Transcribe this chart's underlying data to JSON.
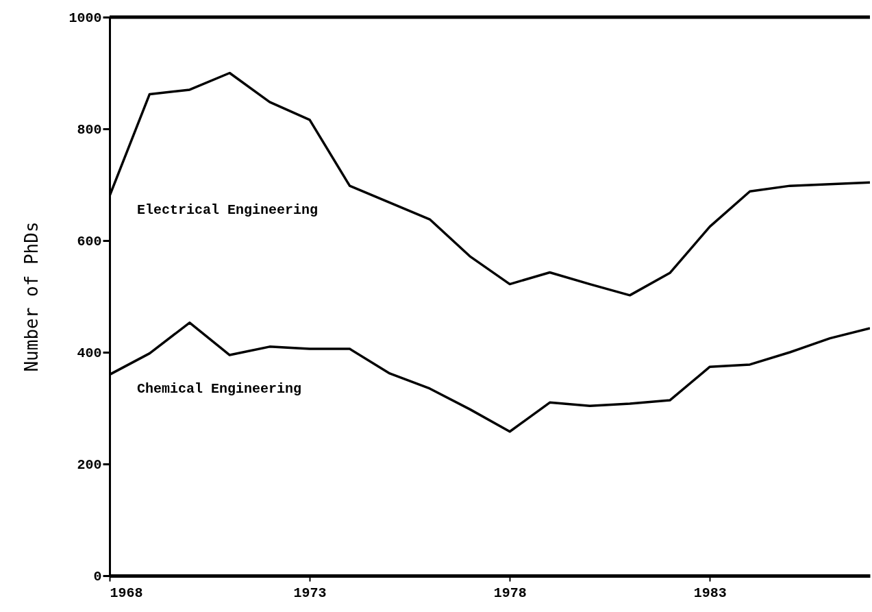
{
  "chart_data": {
    "type": "line",
    "ylabel": "Number of PhDs",
    "x": [
      1968,
      1969,
      1970,
      1971,
      1972,
      1973,
      1974,
      1975,
      1976,
      1977,
      1978,
      1979,
      1980,
      1981,
      1982,
      1983,
      1984,
      1985,
      1986,
      1987
    ],
    "series": [
      {
        "name": "Electrical Engineering",
        "color": "#000000",
        "values": [
          680,
          862,
          870,
          900,
          848,
          816,
          698,
          668,
          638,
          572,
          522,
          543,
          522,
          502,
          542,
          625,
          688,
          698,
          701,
          704
        ]
      },
      {
        "name": "Chemical Engineering",
        "color": "#000000",
        "values": [
          360,
          398,
          453,
          395,
          410,
          406,
          406,
          362,
          335,
          298,
          258,
          310,
          304,
          308,
          314,
          374,
          378,
          400,
          425,
          443
        ]
      }
    ],
    "xlim": [
      1968,
      1987
    ],
    "xticks": [
      1968,
      1973,
      1978,
      1983
    ],
    "ylim": [
      0,
      1000
    ],
    "yticks": [
      0,
      200,
      400,
      600,
      800,
      1000
    ],
    "grid": false,
    "marker": "none",
    "line_style": "solid"
  }
}
